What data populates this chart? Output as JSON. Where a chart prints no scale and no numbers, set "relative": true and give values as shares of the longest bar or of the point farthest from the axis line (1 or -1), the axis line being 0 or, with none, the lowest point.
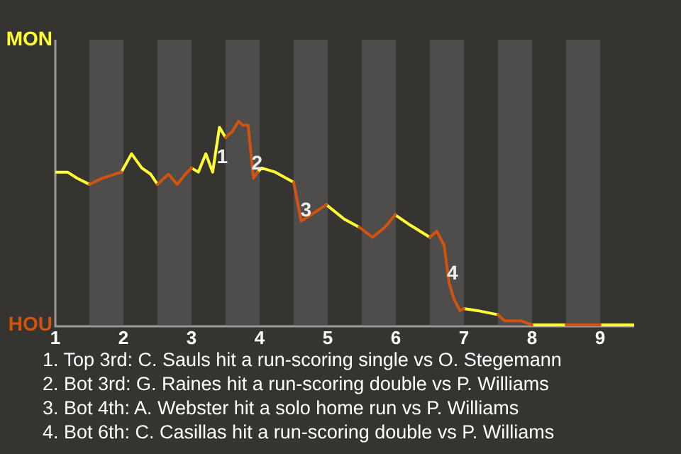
{
  "chart_data": {
    "type": "line",
    "relative": true,
    "x": [
      1,
      1.18,
      1.32,
      1.5,
      1.69,
      1.97,
      2.12,
      2.27,
      2.4,
      2.5,
      2.66,
      2.79,
      2.91,
      3,
      3.1,
      3.21,
      3.31,
      3.41,
      3.5,
      3.6,
      3.69,
      3.75,
      3.83,
      3.91,
      3.97,
      4.03,
      4.23,
      4.5,
      4.61,
      4.75,
      4.98,
      5.24,
      5.46,
      5.66,
      5.84,
      5.99,
      6.21,
      6.5,
      6.6,
      6.71,
      6.78,
      6.85,
      6.94,
      7,
      7.2,
      7.5,
      7.6,
      7.84,
      8,
      8.14,
      8.5,
      9,
      9.49
    ],
    "series": [
      {
        "name": "MON",
        "color": "#ffff33",
        "values": [
          0.75,
          0.75,
          0.72,
          0.69,
          null,
          0.75,
          0.84,
          0.77,
          0.74,
          0.69,
          null,
          null,
          null,
          0.77,
          0.75,
          0.84,
          0.75,
          0.97,
          0.92,
          null,
          null,
          null,
          null,
          null,
          0.75,
          0.77,
          0.75,
          0.7,
          null,
          null,
          0.59,
          0.52,
          0.48,
          null,
          null,
          0.54,
          0.49,
          0.43,
          null,
          null,
          null,
          null,
          null,
          0.08,
          0.07,
          0.05,
          null,
          null,
          0,
          0,
          0,
          0,
          0
        ]
      },
      {
        "name": "HOU",
        "color": "#d2520f",
        "values": [
          null,
          null,
          null,
          0.69,
          0.72,
          0.75,
          null,
          null,
          null,
          0.69,
          0.74,
          0.69,
          0.74,
          0.77,
          null,
          null,
          null,
          null,
          0.92,
          0.95,
          1,
          0.98,
          0.98,
          0.72,
          0.75,
          null,
          null,
          0.7,
          0.51,
          0.54,
          0.59,
          null,
          0.48,
          0.43,
          0.48,
          0.54,
          null,
          0.43,
          0.46,
          0.39,
          0.21,
          0.13,
          0.07,
          0.08,
          null,
          0.05,
          0.02,
          0.02,
          0,
          null,
          0,
          0,
          null
        ]
      }
    ],
    "xlim": [
      1,
      9.5
    ],
    "xticks": [
      1,
      2,
      3,
      4,
      5,
      6,
      7,
      8,
      9
    ],
    "legend": "left",
    "bands": [
      {
        "axis": "x",
        "from": 1.5,
        "to": 2,
        "color": "#4e4d4b"
      },
      {
        "axis": "x",
        "from": 2.5,
        "to": 3,
        "color": "#4e4d4b"
      },
      {
        "axis": "x",
        "from": 3.5,
        "to": 4,
        "color": "#4e4d4b"
      },
      {
        "axis": "x",
        "from": 4.5,
        "to": 5,
        "color": "#4e4d4b"
      },
      {
        "axis": "x",
        "from": 5.5,
        "to": 6,
        "color": "#4e4d4b"
      },
      {
        "axis": "x",
        "from": 6.5,
        "to": 7,
        "color": "#4e4d4b"
      },
      {
        "axis": "x",
        "from": 7.5,
        "to": 8,
        "color": "#4e4d4b"
      },
      {
        "axis": "x",
        "from": 8.5,
        "to": 9,
        "color": "#4e4d4b"
      }
    ],
    "annotations": [
      {
        "text": "1",
        "x": 3.45,
        "y": 0.82
      },
      {
        "text": "2",
        "x": 3.96,
        "y": 0.79
      },
      {
        "text": "3",
        "x": 4.68,
        "y": 0.56
      },
      {
        "text": "4",
        "x": 6.83,
        "y": 0.25
      },
      "1. Top 3rd: C. Sauls hit a run-scoring single vs O. Stegemann",
      "2. Bot 3rd: G. Raines hit a run-scoring double vs P. Williams",
      "3. Bot 4th: A. Webster hit a solo home run vs P. Williams",
      "4. Bot 6th: C. Casillas hit a run-scoring double vs P. Williams"
    ]
  }
}
